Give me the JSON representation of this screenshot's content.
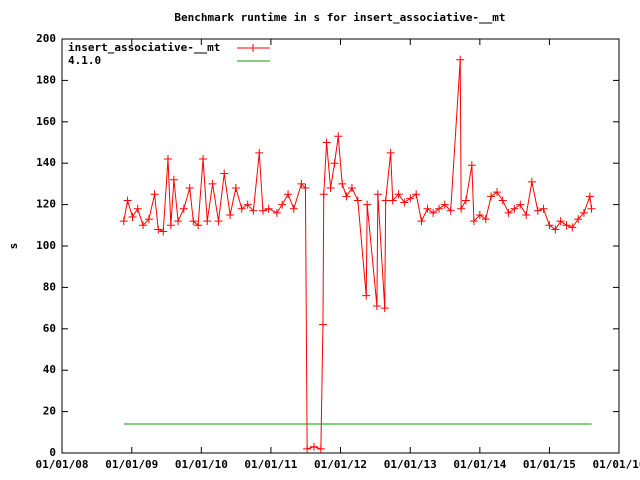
{
  "chart_data": {
    "type": "line",
    "title": "Benchmark runtime in s for insert_associative-__mt",
    "y_label": "s",
    "legend": "upper left",
    "ylim": [
      0,
      200
    ],
    "yticks": [
      0,
      20,
      40,
      60,
      80,
      100,
      120,
      140,
      160,
      180,
      200
    ],
    "xlim": [
      "2008-01-01",
      "2016-01-01"
    ],
    "xticks": [
      {
        "value": "2008-01-01",
        "label": "01/01/08"
      },
      {
        "value": "2009-01-01",
        "label": "01/01/09"
      },
      {
        "value": "2010-01-01",
        "label": "01/01/10"
      },
      {
        "value": "2011-01-01",
        "label": "01/01/11"
      },
      {
        "value": "2012-01-01",
        "label": "01/01/12"
      },
      {
        "value": "2013-01-01",
        "label": "01/01/13"
      },
      {
        "value": "2014-01-01",
        "label": "01/01/14"
      },
      {
        "value": "2015-01-01",
        "label": "01/01/15"
      },
      {
        "value": "2016-01-01",
        "label": "01/01/16"
      }
    ],
    "series": [
      {
        "name": "insert_associative-__mt",
        "color": "#ff0000",
        "markers": true,
        "x": [
          "2008-11-20",
          "2008-12-10",
          "2009-01-05",
          "2009-02-01",
          "2009-03-01",
          "2009-04-01",
          "2009-05-01",
          "2009-05-20",
          "2009-06-15",
          "2009-07-10",
          "2009-07-25",
          "2009-08-10",
          "2009-09-01",
          "2009-10-01",
          "2009-11-01",
          "2009-11-20",
          "2009-12-15",
          "2010-01-10",
          "2010-02-01",
          "2010-03-01",
          "2010-04-01",
          "2010-05-01",
          "2010-06-01",
          "2010-07-01",
          "2010-08-01",
          "2010-09-01",
          "2010-10-01",
          "2010-11-01",
          "2010-11-20",
          "2010-12-20",
          "2011-02-01",
          "2011-03-01",
          "2011-04-01",
          "2011-05-01",
          "2011-06-10",
          "2011-07-01",
          "2011-07-10",
          "2011-08-15",
          "2011-09-20",
          "2011-10-01",
          "2011-10-05",
          "2011-10-20",
          "2011-11-10",
          "2011-12-01",
          "2011-12-20",
          "2012-01-10",
          "2012-02-01",
          "2012-03-01",
          "2012-04-01",
          "2012-05-15",
          "2012-05-20",
          "2012-07-10",
          "2012-07-15",
          "2012-08-20",
          "2012-08-25",
          "2012-09-20",
          "2012-10-01",
          "2012-11-01",
          "2012-12-01",
          "2013-01-01",
          "2013-02-01",
          "2013-03-01",
          "2013-04-01",
          "2013-05-01",
          "2013-06-01",
          "2013-07-01",
          "2013-08-01",
          "2013-09-20",
          "2013-09-25",
          "2013-10-20",
          "2013-11-20",
          "2013-12-01",
          "2014-01-01",
          "2014-02-01",
          "2014-03-01",
          "2014-04-01",
          "2014-05-01",
          "2014-06-01",
          "2014-07-01",
          "2014-08-01",
          "2014-09-01",
          "2014-10-01",
          "2014-11-01",
          "2014-12-01",
          "2015-01-01",
          "2015-02-01",
          "2015-03-01",
          "2015-04-01",
          "2015-05-01",
          "2015-06-01",
          "2015-07-01",
          "2015-08-01",
          "2015-08-10"
        ],
        "values": [
          112,
          122,
          114,
          118,
          110,
          113,
          125,
          108,
          107,
          142,
          110,
          132,
          112,
          118,
          128,
          112,
          110,
          142,
          112,
          130,
          112,
          135,
          115,
          128,
          118,
          120,
          117,
          145,
          117,
          118,
          116,
          120,
          125,
          118,
          130,
          128,
          2,
          3,
          2,
          62,
          125,
          150,
          128,
          140,
          153,
          130,
          124,
          128,
          122,
          76,
          120,
          71,
          125,
          70,
          122,
          145,
          122,
          125,
          121,
          123,
          125,
          112,
          118,
          116,
          118,
          120,
          117,
          190,
          118,
          122,
          139,
          112,
          115,
          113,
          124,
          126,
          122,
          116,
          118,
          120,
          115,
          131,
          117,
          118,
          110,
          108,
          112,
          110,
          109,
          113,
          116,
          124,
          118
        ]
      },
      {
        "name": "4.1.0",
        "color": "#00a000",
        "markers": false,
        "x": [
          "2008-11-20",
          "2015-08-10"
        ],
        "values": [
          14,
          14
        ]
      }
    ]
  }
}
